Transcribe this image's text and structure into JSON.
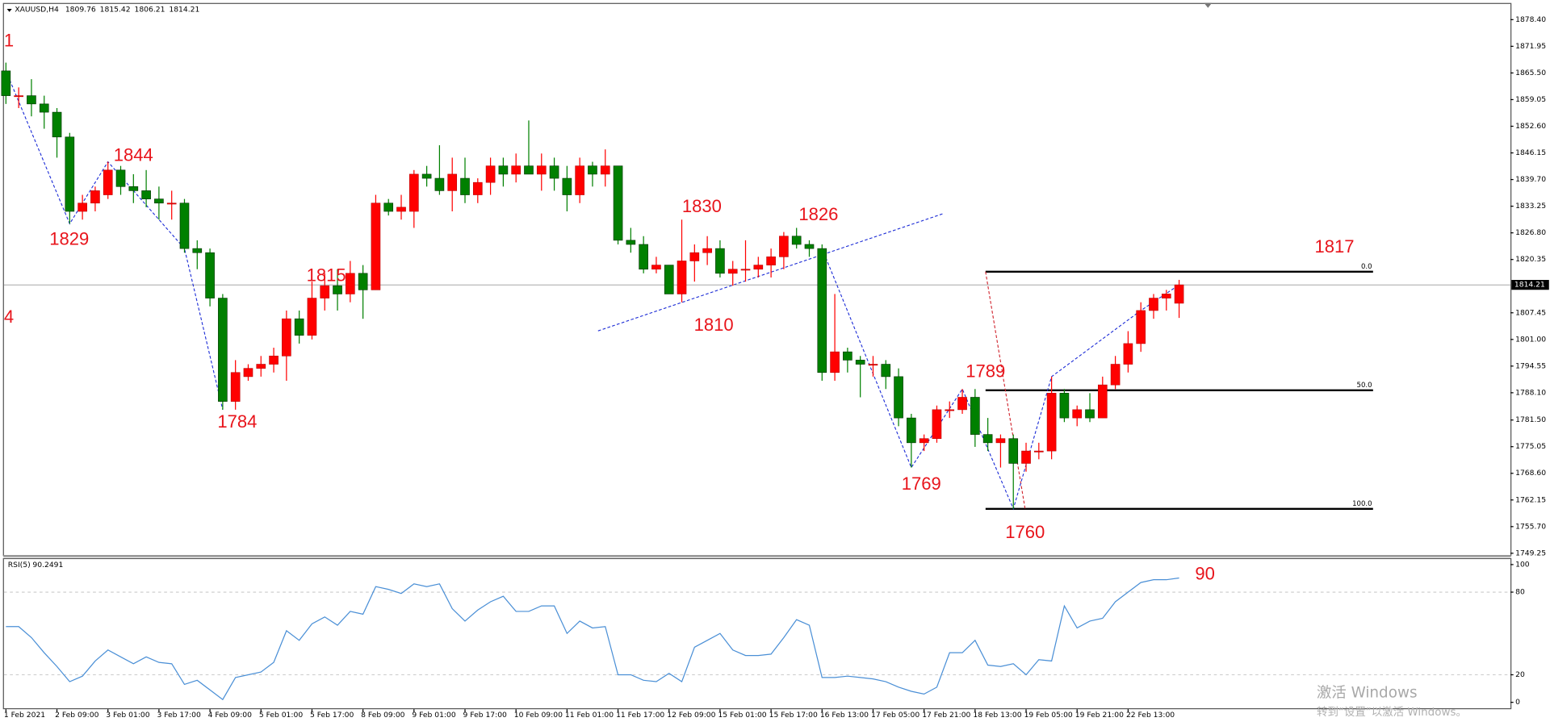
{
  "chart_data": {
    "type": "candlestick",
    "symbol": "XAUUSD,H4",
    "indicator": "RSI(5)",
    "up_color": "#ff0000",
    "down_color": "#008000",
    "rsi_color": "#4a8fd6",
    "categories": [
      "1 Feb 2021",
      null,
      null,
      null,
      "2 Feb 09:00",
      null,
      null,
      null,
      "3 Feb 01:00",
      null,
      null,
      null,
      "3 Feb 17:00",
      null,
      null,
      null,
      "4 Feb 09:00",
      null,
      null,
      null,
      "5 Feb 01:00",
      null,
      null,
      null,
      "5 Feb 17:00",
      null,
      null,
      null,
      "8 Feb 09:00",
      null,
      null,
      null,
      "9 Feb 01:00",
      null,
      null,
      null,
      "9 Feb 17:00",
      null,
      null,
      null,
      "10 Feb 09:00",
      null,
      null,
      null,
      "11 Feb 01:00",
      null,
      null,
      null,
      "11 Feb 17:00",
      null,
      null,
      null,
      "12 Feb 09:00",
      null,
      null,
      null,
      "15 Feb 01:00",
      null,
      null,
      null,
      "15 Feb 17:00",
      null,
      null,
      null,
      "16 Feb 13:00",
      null,
      null,
      null,
      "17 Feb 05:00",
      null,
      null,
      null,
      "17 Feb 21:00",
      null,
      null,
      null,
      "18 Feb 13:00",
      null,
      null,
      null,
      "19 Feb 05:00",
      null,
      null,
      null,
      "19 Feb 21:00",
      null,
      null,
      null,
      "22 Feb 13:00",
      null,
      null,
      null,
      null
    ],
    "open": [
      1866,
      1860,
      1860,
      1858,
      1856,
      1850,
      1832,
      1834,
      1836,
      1842,
      1838,
      1837,
      1835,
      1834,
      1834,
      1823,
      1822,
      1811,
      1786,
      1792,
      1794,
      1795,
      1797,
      1806,
      1802,
      1811,
      1814,
      1812,
      1817,
      1813,
      1834,
      1832,
      1832,
      1841,
      1840,
      1837,
      1840,
      1836,
      1839,
      1843,
      1841,
      1843,
      1841,
      1843,
      1840,
      1836,
      1843,
      1841,
      1843,
      1825,
      1824,
      1818,
      1819,
      1812,
      1820,
      1822,
      1823,
      1817,
      1818,
      1818,
      1819,
      1821,
      1826,
      1824,
      1823,
      1793,
      1798,
      1796,
      1795,
      1795,
      1792,
      1782,
      1776,
      1777,
      1784,
      1784,
      1787,
      1778,
      1776,
      1777,
      1771,
      1774,
      1774,
      1788,
      1782,
      1784,
      1782,
      1790,
      1795,
      1800,
      1808,
      1811,
      1809.76
    ],
    "high": [
      1868,
      1862,
      1864,
      1860,
      1857,
      1851,
      1836,
      1838,
      1844,
      1843,
      1841,
      1842,
      1838,
      1837,
      1835,
      1825,
      1823,
      1812,
      1796,
      1795,
      1797,
      1799,
      1808,
      1808,
      1815,
      1817,
      1818,
      1820,
      1819,
      1836,
      1835,
      1836,
      1842,
      1843,
      1848,
      1845,
      1845,
      1840,
      1845,
      1845,
      1846,
      1854,
      1846,
      1845,
      1843,
      1845,
      1844,
      1847,
      1843,
      1828,
      1826,
      1821,
      1819,
      1830,
      1824,
      1826,
      1825,
      1820,
      1825,
      1821,
      1823,
      1827,
      1828,
      1825,
      1824,
      1812,
      1799,
      1797,
      1797,
      1796,
      1794,
      1783,
      1778,
      1785,
      1786,
      1789,
      1789,
      1782,
      1778,
      1778,
      1776,
      1776,
      1792,
      1789,
      1785,
      1788,
      1792,
      1797,
      1803,
      1810,
      1812,
      1813,
      1815.42
    ],
    "low": [
      1858,
      1857,
      1855,
      1852,
      1845,
      1829,
      1830,
      1832,
      1835,
      1836,
      1834,
      1833,
      1830,
      1830,
      1822,
      1818,
      1809,
      1784,
      1784,
      1791,
      1792,
      1793,
      1791,
      1800,
      1801,
      1808,
      1808,
      1810,
      1806,
      1813,
      1831,
      1830,
      1828,
      1838,
      1836,
      1832,
      1834,
      1834,
      1836,
      1838,
      1839,
      1841,
      1837,
      1837,
      1832,
      1834,
      1838,
      1838,
      1824,
      1822,
      1817,
      1817,
      1812,
      1810,
      1815,
      1819,
      1816,
      1814,
      1815,
      1816,
      1816,
      1818,
      1823,
      1821,
      1791,
      1791,
      1793,
      1787,
      1792,
      1789,
      1780,
      1770,
      1774,
      1776,
      1782,
      1783,
      1775,
      1774,
      1770,
      1760,
      1769,
      1772,
      1772,
      1781,
      1780,
      1781,
      1782,
      1789,
      1793,
      1798,
      1806,
      1808,
      1806.21
    ],
    "close": [
      1860,
      1860,
      1858,
      1856,
      1850,
      1832,
      1834,
      1837,
      1842,
      1838,
      1837,
      1835,
      1834,
      1834,
      1823,
      1822,
      1811,
      1786,
      1793,
      1794,
      1795,
      1797,
      1806,
      1802,
      1811,
      1814,
      1812,
      1817,
      1813,
      1834,
      1832,
      1833,
      1841,
      1840,
      1837,
      1841,
      1836,
      1839,
      1843,
      1841,
      1843,
      1841,
      1843,
      1840,
      1836,
      1843,
      1841,
      1843,
      1825,
      1824,
      1818,
      1819,
      1812,
      1820,
      1822,
      1823,
      1817,
      1818,
      1818,
      1819,
      1821,
      1826,
      1824,
      1823,
      1793,
      1798,
      1796,
      1795,
      1795,
      1792,
      1782,
      1776,
      1777,
      1784,
      1784,
      1787,
      1778,
      1776,
      1777,
      1771,
      1774,
      1774,
      1788,
      1782,
      1784,
      1782,
      1790,
      1795,
      1800,
      1808,
      1811,
      1812,
      1814.21
    ],
    "ylim": [
      1748.8,
      1882.2
    ],
    "yticks": [
      {
        "value": 1878.4,
        "label": "1878.40"
      },
      1871.95,
      {
        "value": 1865.5,
        "label": "1865.50"
      },
      1859.05,
      {
        "value": 1852.6,
        "label": "1852.60"
      },
      1846.15,
      {
        "value": 1839.7,
        "label": "1839.70"
      },
      1833.25,
      {
        "value": 1826.8,
        "label": "1826.80"
      },
      1820.35,
      1807.45,
      {
        "value": 1801.0,
        "label": "1801.00"
      },
      1794.55,
      {
        "value": 1788.1,
        "label": "1788.10"
      },
      {
        "value": 1781.5,
        "label": "1781.50"
      },
      1775.05,
      {
        "value": 1768.6,
        "label": "1768.60"
      },
      1762.15,
      {
        "value": 1755.7,
        "label": "1755.70"
      },
      1749.25
    ],
    "rsi": [
      55,
      55,
      47,
      36,
      26,
      15,
      19,
      30,
      38,
      33,
      28,
      33,
      29,
      28,
      13,
      16,
      9,
      2,
      18,
      20,
      22,
      29,
      52,
      45,
      57,
      62,
      56,
      66,
      64,
      84,
      82,
      79,
      86,
      84,
      86,
      68,
      59,
      67,
      73,
      77,
      66,
      66,
      70,
      70,
      50,
      59,
      54,
      55,
      20,
      20,
      16,
      15,
      21,
      15,
      40,
      45,
      50,
      38,
      34,
      34,
      35,
      47,
      60,
      56,
      18,
      18,
      19,
      18,
      17,
      15,
      11,
      8,
      6,
      11,
      36,
      36,
      45,
      27,
      26,
      28,
      20,
      31,
      30,
      70,
      54,
      59,
      61,
      73,
      80,
      87,
      89,
      89,
      90.2491
    ],
    "rsi_ylim": [
      -5,
      104
    ],
    "rsi_yticks": [
      100,
      80,
      20,
      0
    ],
    "rsi_levels": [
      80,
      20
    ],
    "fibo_levels": [
      {
        "label": "0.0",
        "price": 1817.4
      },
      {
        "label": "50.0",
        "price": 1788.7
      },
      {
        "label": "100.0",
        "price": 1760.0
      }
    ],
    "annotations": [
      "1",
      "1829",
      "1844",
      "1815",
      "1784",
      "1830",
      "1826",
      "1810",
      "1769",
      "1789",
      "1760",
      "1817",
      "4",
      "90"
    ],
    "watermark": [
      "激活 Windows",
      "转到“设置”以激活 Windows。"
    ]
  }
}
